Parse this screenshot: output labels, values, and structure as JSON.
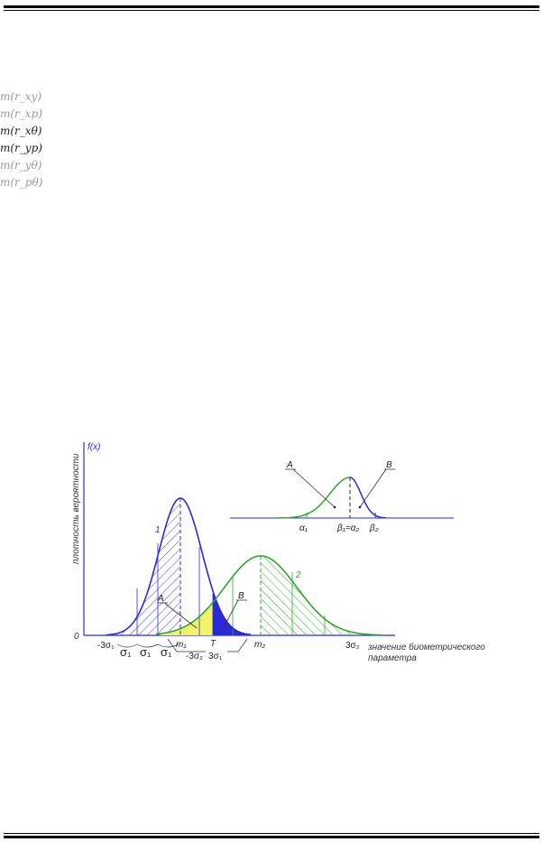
{
  "formulas": [
    {
      "text": "m(r_xy)",
      "shade": "faded"
    },
    {
      "text": "m(r_xp)",
      "shade": "faded"
    },
    {
      "text": "m(r_xθ)",
      "shade": "dark"
    },
    {
      "text": "m(r_yp)",
      "shade": "dark"
    },
    {
      "text": "m(r_yθ)",
      "shade": "faded"
    },
    {
      "text": "m(r_pθ)",
      "shade": "faded"
    }
  ],
  "figure": {
    "y_axis_label": "плотность вероятности",
    "y_axis_name": "f(x)",
    "x_axis_label_line1": "значение биометрического",
    "x_axis_label_line2": "параметра",
    "origin": "0",
    "curve1_label": "1",
    "curve2_label": "2",
    "region_a": "A",
    "region_b": "B",
    "ticks": {
      "minus3s1": "-3σ₁",
      "sigma1": "σ₁",
      "m1": "m₁",
      "minus3s2": "-3σ₂",
      "T": "T",
      "three_s1": "3σ₁",
      "m2": "m₂",
      "three_s2": "3σ₂"
    },
    "inset": {
      "a": "A",
      "b": "B",
      "alpha1": "α₁",
      "beta1_alpha2": "β₁=α₂",
      "beta2": "β₂"
    },
    "colors": {
      "curve1": "#2b2bd4",
      "curve2": "#2fa52f",
      "region_a_fill": "#f3f36a",
      "region_b_fill": "#2b2bd4",
      "axis": "#2b2bd4"
    }
  }
}
